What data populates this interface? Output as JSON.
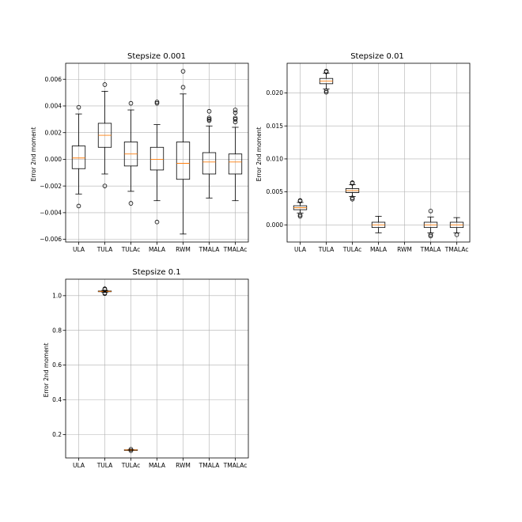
{
  "chart_data": [
    {
      "type": "boxplot",
      "title": "Stepsize 0.001",
      "ylabel": "Error 2nd moment",
      "xlabel": "",
      "categories": [
        "ULA",
        "TULA",
        "TULAc",
        "MALA",
        "RWM",
        "TMALA",
        "TMALAc"
      ],
      "ylim": [
        -0.0062,
        0.0072
      ],
      "yticks": [
        -0.006,
        -0.004,
        -0.002,
        0.0,
        0.002,
        0.004,
        0.006
      ],
      "ytick_labels": [
        "−0.006",
        "−0.004",
        "−0.002",
        "0.000",
        "0.002",
        "0.004",
        "0.006"
      ],
      "grid": true,
      "boxes": [
        {
          "category": "ULA",
          "whislo": -0.0026,
          "q1": -0.0007,
          "med": 0.0001,
          "q3": 0.001,
          "whishi": 0.0034,
          "fliers": [
            0.0039,
            -0.0035
          ]
        },
        {
          "category": "TULA",
          "whislo": -0.0011,
          "q1": 0.0009,
          "med": 0.0018,
          "q3": 0.0027,
          "whishi": 0.0051,
          "fliers": [
            0.0056,
            -0.002
          ]
        },
        {
          "category": "TULAc",
          "whislo": -0.0024,
          "q1": -0.0005,
          "med": 0.0004,
          "q3": 0.0013,
          "whishi": 0.0037,
          "fliers": [
            0.0042,
            -0.0033
          ]
        },
        {
          "category": "MALA",
          "whislo": -0.0031,
          "q1": -0.0008,
          "med": 0.0,
          "q3": 0.0009,
          "whishi": 0.0026,
          "fliers": [
            0.0042,
            0.0043,
            -0.0047
          ]
        },
        {
          "category": "RWM",
          "whislo": -0.0056,
          "q1": -0.0015,
          "med": -0.0003,
          "q3": 0.0013,
          "whishi": 0.0049,
          "fliers": [
            0.0054,
            0.0066
          ]
        },
        {
          "category": "TMALA",
          "whislo": -0.0029,
          "q1": -0.0011,
          "med": -0.0002,
          "q3": 0.0005,
          "whishi": 0.0025,
          "fliers": [
            0.0029,
            0.003,
            0.0031,
            0.0036
          ]
        },
        {
          "category": "TMALAc",
          "whislo": -0.0031,
          "q1": -0.0011,
          "med": -0.0002,
          "q3": 0.0004,
          "whishi": 0.0024,
          "fliers": [
            0.0028,
            0.003,
            0.0031,
            0.0035,
            0.0037
          ]
        }
      ]
    },
    {
      "type": "boxplot",
      "title": "Stepsize 0.01",
      "ylabel": "Error 2nd moment",
      "xlabel": "",
      "categories": [
        "ULA",
        "TULA",
        "TULAc",
        "MALA",
        "RWM",
        "TMALA",
        "TMALAc"
      ],
      "ylim": [
        -0.0026,
        0.0245
      ],
      "yticks": [
        0.0,
        0.005,
        0.01,
        0.015,
        0.02
      ],
      "ytick_labels": [
        "0.000",
        "0.005",
        "0.010",
        "0.015",
        "0.020"
      ],
      "grid": true,
      "boxes": [
        {
          "category": "ULA",
          "whislo": 0.0018,
          "q1": 0.0023,
          "med": 0.0026,
          "q3": 0.0029,
          "whishi": 0.0034,
          "fliers": [
            0.0015,
            0.0013,
            0.0036,
            0.0037
          ]
        },
        {
          "category": "TULA",
          "whislo": 0.0206,
          "q1": 0.0214,
          "med": 0.0218,
          "q3": 0.0222,
          "whishi": 0.023,
          "fliers": [
            0.0203,
            0.0201,
            0.0232,
            0.0233
          ]
        },
        {
          "category": "TULAc",
          "whislo": 0.0043,
          "q1": 0.0049,
          "med": 0.0052,
          "q3": 0.0055,
          "whishi": 0.0061,
          "fliers": [
            0.0041,
            0.0039,
            0.0063,
            0.0064
          ]
        },
        {
          "category": "MALA",
          "whislo": -0.0012,
          "q1": -0.0004,
          "med": 0.0,
          "q3": 0.0004,
          "whishi": 0.0013,
          "fliers": []
        },
        {
          "category": "RWM",
          "whislo": null,
          "q1": null,
          "med": null,
          "q3": null,
          "whishi": null,
          "fliers": []
        },
        {
          "category": "TMALA",
          "whislo": -0.0012,
          "q1": -0.0004,
          "med": 0.0,
          "q3": 0.0004,
          "whishi": 0.0012,
          "fliers": [
            -0.0015,
            -0.0017,
            0.0021
          ]
        },
        {
          "category": "TMALAc",
          "whislo": -0.0012,
          "q1": -0.0004,
          "med": 0.0,
          "q3": 0.0004,
          "whishi": 0.0011,
          "fliers": [
            -0.0015
          ]
        }
      ]
    },
    {
      "type": "boxplot",
      "title": "Stepsize 0.1",
      "ylabel": "Error 2nd moment",
      "xlabel": "",
      "categories": [
        "ULA",
        "TULA",
        "TULAc",
        "MALA",
        "RWM",
        "TMALA",
        "TMALAc"
      ],
      "ylim": [
        0.065,
        1.095
      ],
      "yticks": [
        0.2,
        0.4,
        0.6,
        0.8,
        1.0
      ],
      "ytick_labels": [
        "0.2",
        "0.4",
        "0.6",
        "0.8",
        "1.0"
      ],
      "grid": true,
      "boxes": [
        {
          "category": "ULA",
          "whislo": null,
          "q1": null,
          "med": null,
          "q3": null,
          "whishi": null,
          "fliers": []
        },
        {
          "category": "TULA",
          "whislo": 1.019,
          "q1": 1.023,
          "med": 1.025,
          "q3": 1.027,
          "whishi": 1.031,
          "fliers": [
            1.012,
            1.015,
            1.036,
            1.04
          ]
        },
        {
          "category": "TULAc",
          "whislo": 0.109,
          "q1": 0.11,
          "med": 0.111,
          "q3": 0.112,
          "whishi": 0.113,
          "fliers": [
            0.107,
            0.115
          ]
        },
        {
          "category": "MALA",
          "whislo": null,
          "q1": null,
          "med": null,
          "q3": null,
          "whishi": null,
          "fliers": []
        },
        {
          "category": "RWM",
          "whislo": null,
          "q1": null,
          "med": null,
          "q3": null,
          "whishi": null,
          "fliers": []
        },
        {
          "category": "TMALA",
          "whislo": null,
          "q1": null,
          "med": null,
          "q3": null,
          "whishi": null,
          "fliers": []
        },
        {
          "category": "TMALAc",
          "whislo": null,
          "q1": null,
          "med": null,
          "q3": null,
          "whishi": null,
          "fliers": []
        }
      ]
    }
  ],
  "colors": {
    "box_edge": "#000000",
    "median": "#ff7f0e",
    "grid": "#b0b0b0",
    "background": "#ffffff"
  }
}
